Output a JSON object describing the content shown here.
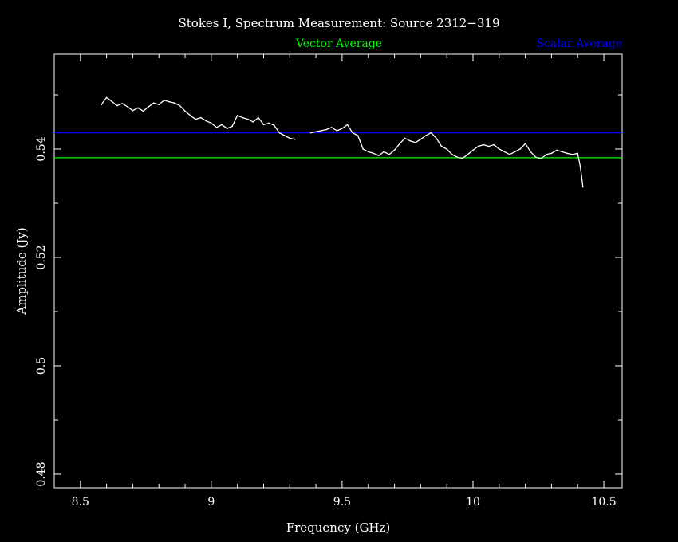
{
  "chart_data": {
    "type": "line",
    "title": "Stokes I, Spectrum Measurement: Source 2312−319",
    "xlabel": "Frequency (GHz)",
    "ylabel": "Amplitude (Jy)",
    "xlim": [
      8.4,
      10.57
    ],
    "ylim": [
      0.4775,
      0.5575
    ],
    "x_ticks": [
      "8.5",
      "9",
      "9.5",
      "10",
      "10.5"
    ],
    "y_ticks": [
      "0.48",
      "0.5",
      "0.52",
      "0.54"
    ],
    "grid": false,
    "legend_position": "top",
    "series": [
      {
        "name": "Vector Average",
        "color": "#00ff00",
        "kind": "hline",
        "y": 0.5384
      },
      {
        "name": "Scalar Average",
        "color": "#0000ff",
        "kind": "hline",
        "y": 0.543
      },
      {
        "name": "",
        "color": "#ffffff",
        "kind": "spectrum",
        "segments": [
          {
            "x": [
              8.58,
              8.6,
              8.62,
              8.64,
              8.66,
              8.68,
              8.7,
              8.72,
              8.74,
              8.76,
              8.78,
              8.8,
              8.82,
              8.84,
              8.86,
              8.88,
              8.9,
              8.92,
              8.94,
              8.96,
              8.98,
              9.0,
              9.02,
              9.04,
              9.06,
              9.08,
              9.1,
              9.12,
              9.14,
              9.16,
              9.18,
              9.2,
              9.22,
              9.24,
              9.26,
              9.28,
              9.3,
              9.32
            ],
            "y": [
              0.5482,
              0.5495,
              0.5488,
              0.548,
              0.5484,
              0.5478,
              0.5471,
              0.5476,
              0.547,
              0.5478,
              0.5485,
              0.5482,
              0.549,
              0.5487,
              0.5485,
              0.548,
              0.547,
              0.5462,
              0.5455,
              0.5458,
              0.5452,
              0.5448,
              0.544,
              0.5445,
              0.5438,
              0.5442,
              0.5462,
              0.5458,
              0.5455,
              0.545,
              0.5458,
              0.5445,
              0.5448,
              0.5444,
              0.543,
              0.5425,
              0.542,
              0.5418
            ]
          },
          {
            "x": [
              9.38,
              9.4,
              9.42,
              9.44,
              9.46,
              9.48,
              9.5,
              9.52,
              9.54,
              9.56,
              9.58,
              9.6,
              9.62,
              9.64,
              9.66,
              9.68,
              9.7,
              9.72,
              9.74,
              9.76,
              9.78,
              9.8,
              9.82,
              9.84,
              9.86,
              9.88,
              9.9,
              9.92,
              9.94,
              9.96,
              9.98,
              10.0,
              10.02,
              10.04,
              10.06,
              10.08,
              10.1,
              10.12,
              10.14,
              10.16,
              10.18,
              10.2,
              10.22,
              10.24,
              10.26,
              10.28,
              10.3,
              10.32,
              10.34,
              10.36,
              10.38,
              10.4,
              10.41,
              10.415,
              10.42
            ],
            "y": [
              0.543,
              0.5432,
              0.5434,
              0.5436,
              0.544,
              0.5434,
              0.5438,
              0.5445,
              0.543,
              0.5425,
              0.54,
              0.5395,
              0.5392,
              0.5388,
              0.5395,
              0.539,
              0.5398,
              0.541,
              0.542,
              0.5415,
              0.5412,
              0.5418,
              0.5425,
              0.543,
              0.542,
              0.5405,
              0.54,
              0.539,
              0.5385,
              0.5383,
              0.539,
              0.5398,
              0.5405,
              0.5408,
              0.5405,
              0.5408,
              0.54,
              0.5395,
              0.539,
              0.5395,
              0.54,
              0.541,
              0.5395,
              0.5385,
              0.5382,
              0.539,
              0.5392,
              0.5398,
              0.5395,
              0.5392,
              0.539,
              0.5392,
              0.5368,
              0.535,
              0.533
            ]
          }
        ]
      }
    ]
  },
  "colors": {
    "background": "#000000",
    "axes": "#ffffff",
    "text": "#ffffff",
    "vector": "#00ff00",
    "scalar": "#0000ff",
    "spectrum": "#ffffff"
  }
}
